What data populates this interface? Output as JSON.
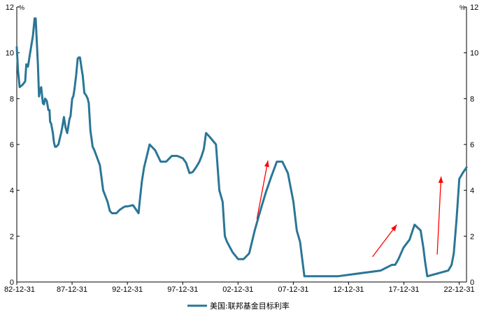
{
  "chart_data": {
    "type": "line",
    "unit_left": "%",
    "unit_right": "%",
    "ylim": [
      0,
      12
    ],
    "y_ticks": [
      "0",
      "2",
      "4",
      "6",
      "8",
      "10",
      "12"
    ],
    "x_tick_labels": [
      "82-12-31",
      "87-12-31",
      "92-12-31",
      "97-12-31",
      "02-12-31",
      "07-12-31",
      "12-12-31",
      "17-12-31",
      "22-12-31"
    ],
    "x_tick_years": [
      1982.99,
      1987.99,
      1992.99,
      1997.99,
      2002.99,
      2007.99,
      2012.99,
      2017.99,
      2022.99
    ],
    "xlim": [
      1982.99,
      2023.65
    ],
    "grid": false,
    "legend_position": "bottom",
    "series": [
      {
        "name": "美国:联邦基金目标利率",
        "color": "#2a7696",
        "x": [
          1982.99,
          1983.1,
          1983.25,
          1983.5,
          1983.75,
          1983.85,
          1984.0,
          1984.2,
          1984.45,
          1984.6,
          1984.7,
          1984.8,
          1984.9,
          1985.0,
          1985.1,
          1985.2,
          1985.35,
          1985.45,
          1985.55,
          1985.7,
          1985.85,
          1985.95,
          1986.0,
          1986.1,
          1986.25,
          1986.35,
          1986.45,
          1986.55,
          1986.65,
          1986.75,
          1986.9,
          1987.0,
          1987.1,
          1987.25,
          1987.4,
          1987.55,
          1987.65,
          1987.75,
          1987.85,
          1988.0,
          1988.1,
          1988.2,
          1988.35,
          1988.5,
          1988.6,
          1988.7,
          1988.85,
          1988.95,
          1989.1,
          1989.25,
          1989.4,
          1989.5,
          1989.65,
          1989.85,
          1990.0,
          1990.5,
          1990.8,
          1991.0,
          1991.2,
          1991.4,
          1991.6,
          1991.8,
          1992.0,
          1992.3,
          1992.6,
          1992.8,
          1993.0,
          1993.5,
          1994.0,
          1994.1,
          1994.3,
          1994.5,
          1994.75,
          1995.0,
          1995.5,
          1996.0,
          1996.5,
          1997.0,
          1997.5,
          1998.0,
          1998.3,
          1998.6,
          1998.9,
          1999.2,
          1999.5,
          1999.7,
          1999.9,
          2000.1,
          2000.4,
          2001.0,
          2001.3,
          2001.6,
          2001.8,
          2002.0,
          2002.5,
          2003.0,
          2003.5,
          2004.0,
          2004.5,
          2005.0,
          2005.5,
          2006.0,
          2006.5,
          2007.0,
          2007.5,
          2008.0,
          2008.3,
          2008.6,
          2008.99,
          2012.0,
          2015.9,
          2016.9,
          2017.2,
          2017.5,
          2017.95,
          2018.5,
          2018.95,
          2019.5,
          2019.75,
          2019.9,
          2020.1,
          2022.0,
          2022.3,
          2022.5,
          2022.75,
          2023.0,
          2023.3,
          2023.65
        ],
        "values": [
          10.25,
          9.25,
          8.5,
          8.6,
          8.75,
          9.5,
          9.4,
          10.0,
          10.75,
          11.5,
          11.5,
          10.5,
          9.5,
          8.1,
          8.4,
          8.5,
          7.8,
          7.75,
          8.0,
          7.9,
          7.5,
          7.5,
          7.0,
          6.9,
          6.5,
          6.1,
          5.9,
          5.9,
          5.95,
          6.0,
          6.3,
          6.5,
          6.75,
          7.2,
          6.75,
          6.5,
          6.8,
          7.1,
          7.25,
          8.0,
          8.1,
          8.4,
          9.0,
          9.75,
          9.8,
          9.8,
          9.3,
          9.0,
          8.25,
          8.15,
          8.0,
          7.8,
          6.6,
          5.9,
          5.75,
          5.1,
          4.0,
          3.75,
          3.5,
          3.1,
          3.0,
          3.0,
          3.0,
          3.15,
          3.25,
          3.3,
          3.3,
          3.35,
          3.0,
          3.5,
          4.4,
          5.0,
          5.5,
          6.0,
          5.75,
          5.25,
          5.25,
          5.5,
          5.5,
          5.4,
          5.2,
          4.75,
          4.8,
          5.0,
          5.25,
          5.5,
          5.8,
          6.5,
          6.35,
          6.0,
          4.0,
          3.5,
          2.0,
          1.75,
          1.3,
          1.0,
          1.0,
          1.25,
          2.25,
          3.1,
          3.9,
          4.6,
          5.25,
          5.25,
          4.75,
          3.5,
          2.25,
          1.75,
          0.25,
          0.25,
          0.5,
          0.75,
          0.75,
          1.0,
          1.5,
          1.85,
          2.5,
          2.25,
          1.5,
          0.9,
          0.25,
          0.5,
          0.75,
          1.25,
          2.75,
          4.5,
          4.75,
          5.0
        ]
      }
    ],
    "annotations": [
      {
        "kind": "arrow",
        "color": "#ff0000",
        "from": [
          2004.7,
          2.75
        ],
        "to": [
          2005.7,
          5.3
        ]
      },
      {
        "kind": "arrow",
        "color": "#ff0000",
        "from": [
          2015.15,
          1.1
        ],
        "to": [
          2017.35,
          2.5
        ]
      },
      {
        "kind": "arrow",
        "color": "#ff0000",
        "from": [
          2021.0,
          1.2
        ],
        "to": [
          2021.35,
          4.6
        ]
      }
    ]
  }
}
